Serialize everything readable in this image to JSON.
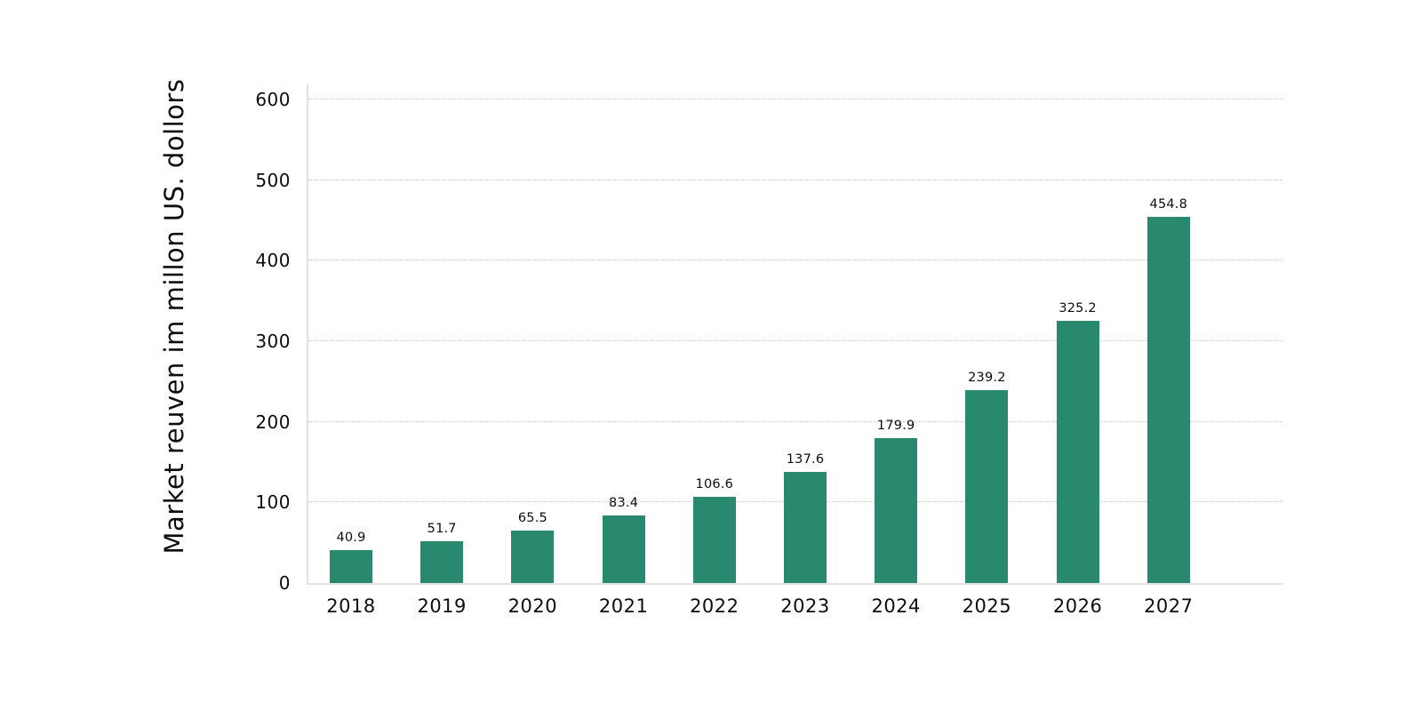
{
  "chart_data": {
    "type": "bar",
    "title": "",
    "xlabel": "",
    "ylabel": "Market reuven im millon US. dollors",
    "categories": [
      "2018",
      "2019",
      "2020",
      "2021",
      "2022",
      "2023",
      "2024",
      "2025",
      "2026",
      "2027"
    ],
    "values": [
      40.9,
      51.7,
      65.5,
      83.4,
      106.6,
      137.6,
      179.9,
      239.2,
      325.2,
      454.8
    ],
    "value_labels": [
      "40.9",
      "51.7",
      "65.5",
      "83.4",
      "106.6",
      "137.6",
      "179.9",
      "239.2",
      "325.2",
      "454.8"
    ],
    "yticks": [
      0,
      100,
      200,
      300,
      400,
      500,
      600
    ],
    "ylim": [
      0,
      600
    ],
    "grid": "horizontal-dotted",
    "legend": "none",
    "colors": {
      "bar": "#28896F",
      "gridline": "#c9c9c9",
      "axis_line": "#e3e3e3",
      "text": "#0d0d0d",
      "background": "#ffffff"
    }
  }
}
